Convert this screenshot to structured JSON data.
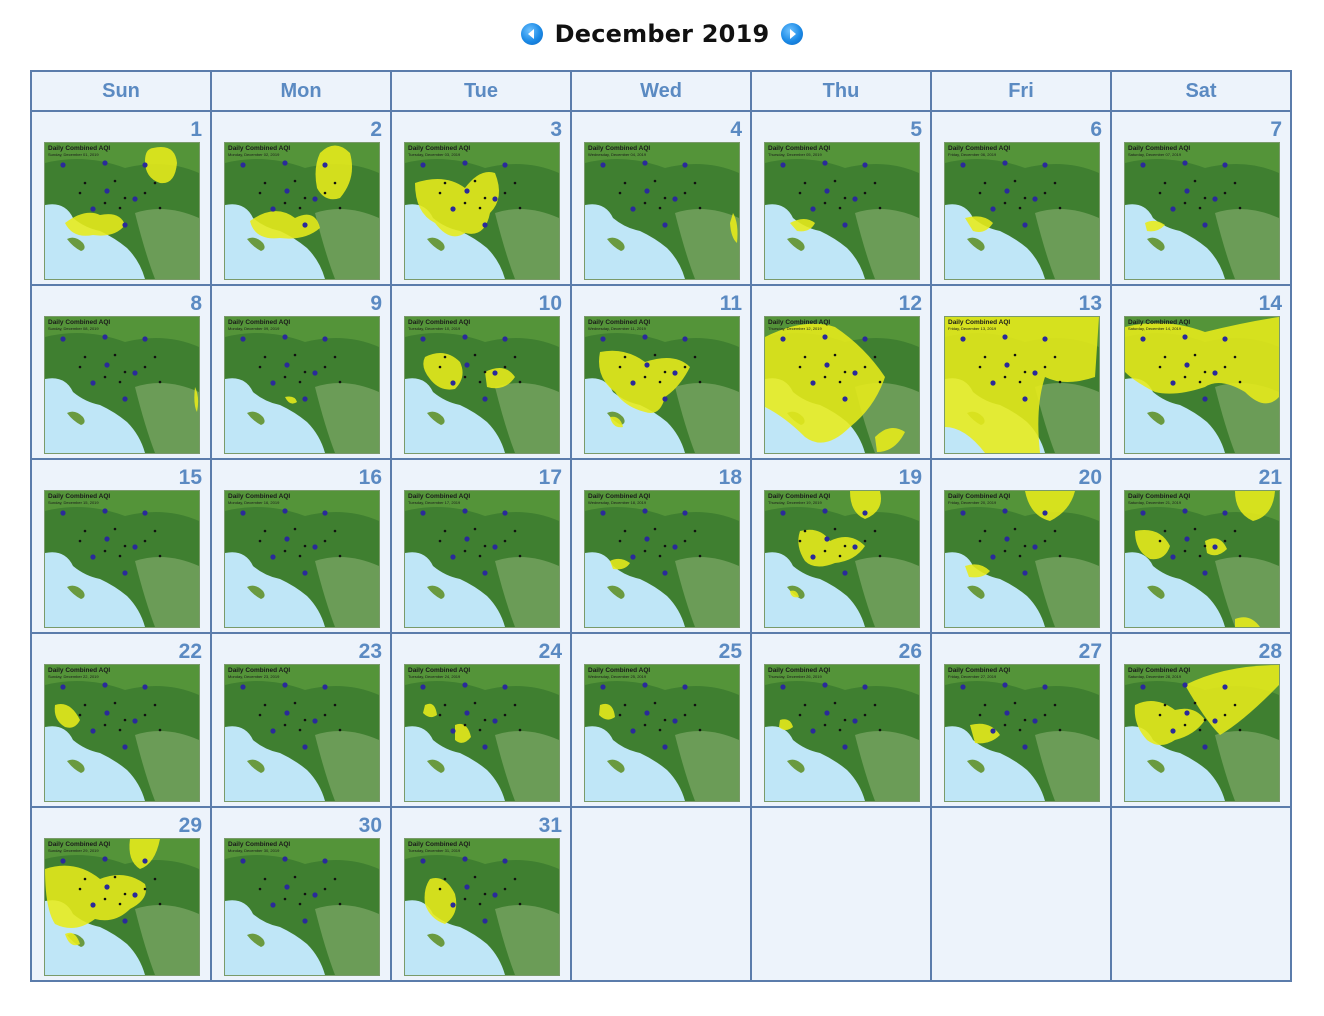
{
  "calendar": {
    "title": "December 2019",
    "prev_icon": "arrow-left-circle-icon",
    "next_icon": "arrow-right-circle-icon",
    "weekdays": [
      "Sun",
      "Mon",
      "Tue",
      "Wed",
      "Thu",
      "Fri",
      "Sat"
    ],
    "first_weekday_index": 0,
    "days": [
      {
        "day": "1",
        "map_title": "Daily Combined AQI",
        "map_date": "Sunday, December 01, 2019"
      },
      {
        "day": "2",
        "map_title": "Daily Combined AQI",
        "map_date": "Monday, December 02, 2019"
      },
      {
        "day": "3",
        "map_title": "Daily Combined AQI",
        "map_date": "Tuesday, December 03, 2019"
      },
      {
        "day": "4",
        "map_title": "Daily Combined AQI",
        "map_date": "Wednesday, December 04, 2019"
      },
      {
        "day": "5",
        "map_title": "Daily Combined AQI",
        "map_date": "Thursday, December 05, 2019"
      },
      {
        "day": "6",
        "map_title": "Daily Combined AQI",
        "map_date": "Friday, December 06, 2019"
      },
      {
        "day": "7",
        "map_title": "Daily Combined AQI",
        "map_date": "Saturday, December 07, 2019"
      },
      {
        "day": "8",
        "map_title": "Daily Combined AQI",
        "map_date": "Sunday, December 08, 2019"
      },
      {
        "day": "9",
        "map_title": "Daily Combined AQI",
        "map_date": "Monday, December 09, 2019"
      },
      {
        "day": "10",
        "map_title": "Daily Combined AQI",
        "map_date": "Tuesday, December 10, 2019"
      },
      {
        "day": "11",
        "map_title": "Daily Combined AQI",
        "map_date": "Wednesday, December 11, 2019"
      },
      {
        "day": "12",
        "map_title": "Daily Combined AQI",
        "map_date": "Thursday, December 12, 2019"
      },
      {
        "day": "13",
        "map_title": "Daily Combined AQI",
        "map_date": "Friday, December 13, 2019"
      },
      {
        "day": "14",
        "map_title": "Daily Combined AQI",
        "map_date": "Saturday, December 14, 2019"
      },
      {
        "day": "15",
        "map_title": "Daily Combined AQI",
        "map_date": "Sunday, December 15, 2019"
      },
      {
        "day": "16",
        "map_title": "Daily Combined AQI",
        "map_date": "Monday, December 16, 2019"
      },
      {
        "day": "17",
        "map_title": "Daily Combined AQI",
        "map_date": "Tuesday, December 17, 2019"
      },
      {
        "day": "18",
        "map_title": "Daily Combined AQI",
        "map_date": "Wednesday, December 18, 2019"
      },
      {
        "day": "19",
        "map_title": "Daily Combined AQI",
        "map_date": "Thursday, December 19, 2019"
      },
      {
        "day": "20",
        "map_title": "Daily Combined AQI",
        "map_date": "Friday, December 20, 2019"
      },
      {
        "day": "21",
        "map_title": "Daily Combined AQI",
        "map_date": "Saturday, December 21, 2019"
      },
      {
        "day": "22",
        "map_title": "Daily Combined AQI",
        "map_date": "Sunday, December 22, 2019"
      },
      {
        "day": "23",
        "map_title": "Daily Combined AQI",
        "map_date": "Monday, December 23, 2019"
      },
      {
        "day": "24",
        "map_title": "Daily Combined AQI",
        "map_date": "Tuesday, December 24, 2019"
      },
      {
        "day": "25",
        "map_title": "Daily Combined AQI",
        "map_date": "Wednesday, December 25, 2019"
      },
      {
        "day": "26",
        "map_title": "Daily Combined AQI",
        "map_date": "Thursday, December 26, 2019"
      },
      {
        "day": "27",
        "map_title": "Daily Combined AQI",
        "map_date": "Friday, December 27, 2019"
      },
      {
        "day": "28",
        "map_title": "Daily Combined AQI",
        "map_date": "Saturday, December 28, 2019"
      },
      {
        "day": "29",
        "map_title": "Daily Combined AQI",
        "map_date": "Sunday, December 29, 2019"
      },
      {
        "day": "30",
        "map_title": "Daily Combined AQI",
        "map_date": "Monday, December 30, 2019"
      },
      {
        "day": "31",
        "map_title": "Daily Combined AQI",
        "map_date": "Tuesday, December 31, 2019"
      }
    ]
  },
  "colors": {
    "weekday_text": "#5b8ac2",
    "cell_background": "#edf3fb",
    "grid_border": "#5b7cab",
    "nav_button": "#1b8ae6",
    "aqi_moderate": "#e8ec1a",
    "land": "#3f7f30",
    "ocean": "#bfe6f7"
  }
}
